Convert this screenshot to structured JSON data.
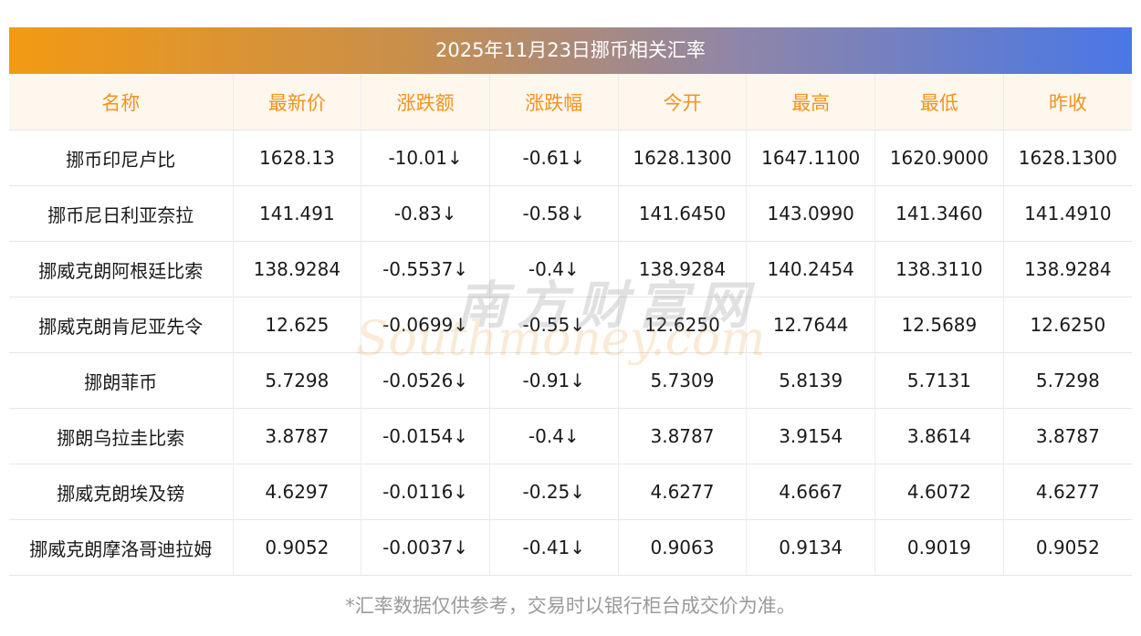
{
  "title": "2025年11月23日挪币相关汇率",
  "headers": [
    "名称",
    "最新价",
    "涨跌额",
    "涨跌幅",
    "今开",
    "最高",
    "最低",
    "昨收"
  ],
  "rows": [
    {
      "name": "挪币印尼卢比",
      "latest": "1628.13",
      "change": "-10.01",
      "pct": "-0.61",
      "open": "1628.1300",
      "high": "1647.1100",
      "low": "1620.9000",
      "prev": "1628.1300"
    },
    {
      "name": "挪币尼日利亚奈拉",
      "latest": "141.491",
      "change": "-0.83",
      "pct": "-0.58",
      "open": "141.6450",
      "high": "143.0990",
      "low": "141.3460",
      "prev": "141.4910"
    },
    {
      "name": "挪威克朗阿根廷比索",
      "latest": "138.9284",
      "change": "-0.5537",
      "pct": "-0.4",
      "open": "138.9284",
      "high": "140.2454",
      "low": "138.3110",
      "prev": "138.9284"
    },
    {
      "name": "挪威克朗肯尼亚先令",
      "latest": "12.625",
      "change": "-0.0699",
      "pct": "-0.55",
      "open": "12.6250",
      "high": "12.7644",
      "low": "12.5689",
      "prev": "12.6250"
    },
    {
      "name": "挪朗菲币",
      "latest": "5.7298",
      "change": "-0.0526",
      "pct": "-0.91",
      "open": "5.7309",
      "high": "5.8139",
      "low": "5.7131",
      "prev": "5.7298"
    },
    {
      "name": "挪朗乌拉圭比索",
      "latest": "3.8787",
      "change": "-0.0154",
      "pct": "-0.4",
      "open": "3.8787",
      "high": "3.9154",
      "low": "3.8614",
      "prev": "3.8787"
    },
    {
      "name": "挪威克朗埃及镑",
      "latest": "4.6297",
      "change": "-0.0116",
      "pct": "-0.25",
      "open": "4.6277",
      "high": "4.6667",
      "low": "4.6072",
      "prev": "4.6277"
    },
    {
      "name": "挪威克朗摩洛哥迪拉姆",
      "latest": "0.9052",
      "change": "-0.0037",
      "pct": "-0.41",
      "open": "0.9063",
      "high": "0.9134",
      "low": "0.9019",
      "prev": "0.9052"
    }
  ],
  "down_arrow": "↓",
  "watermark": {
    "cn": "南方财富网",
    "en": "Southmoney.com"
  },
  "footnote": "*汇率数据仅供参考，交易时以银行柜台成交价为准。",
  "colors": {
    "header_text": "#f3931c",
    "header_bg": "#fdf7ee",
    "positive_green": "#1a8a1a",
    "banner_start": "#f39a14",
    "banner_end": "#4a77e6"
  }
}
